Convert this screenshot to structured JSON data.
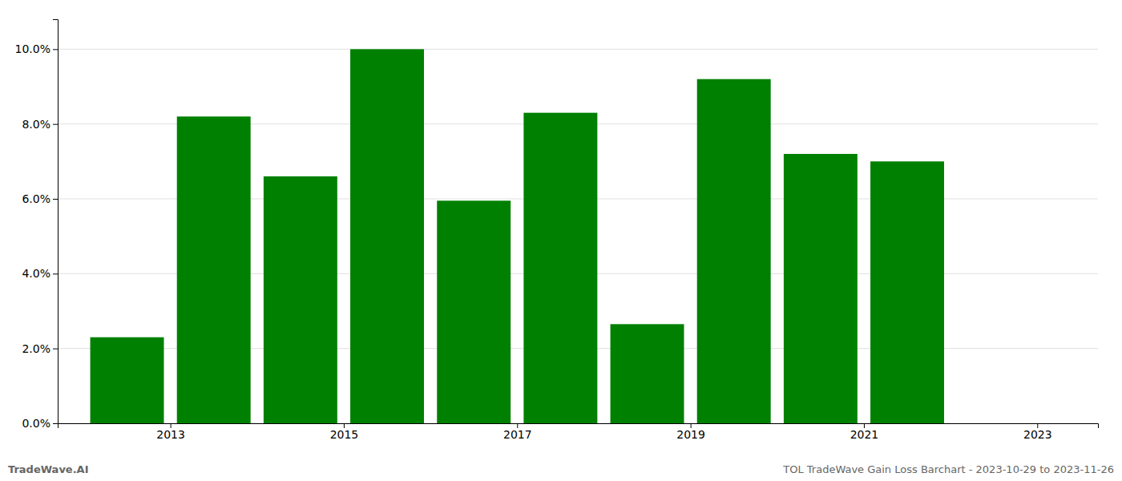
{
  "chart_data": {
    "type": "bar",
    "x": [
      2013,
      2014,
      2015,
      2016,
      2017,
      2018,
      2019,
      2020,
      2021,
      2022
    ],
    "values": [
      0.023,
      0.082,
      0.066,
      0.1,
      0.0595,
      0.083,
      0.0265,
      0.092,
      0.072,
      0.07
    ],
    "color": "#008000",
    "xlim": [
      2012.2,
      2024.2
    ],
    "xticks": [
      {
        "value": 2013.5,
        "label": "2013"
      },
      {
        "value": 2015.5,
        "label": "2015"
      },
      {
        "value": 2017.5,
        "label": "2017"
      },
      {
        "value": 2019.5,
        "label": "2019"
      },
      {
        "value": 2021.5,
        "label": "2021"
      },
      {
        "value": 2023.5,
        "label": "2023"
      }
    ],
    "ylim": [
      0,
      0.108
    ],
    "yticks": [
      {
        "value": 0.0,
        "label": "0.0%"
      },
      {
        "value": 0.02,
        "label": "2.0%"
      },
      {
        "value": 0.04,
        "label": "4.0%"
      },
      {
        "value": 0.06,
        "label": "6.0%"
      },
      {
        "value": 0.08,
        "label": "8.0%"
      },
      {
        "value": 0.1,
        "label": "10.0%"
      }
    ],
    "grid": true,
    "annotations": [
      "TradeWave.AI",
      "TOL TradeWave Gain Loss Barchart - 2023-10-29 to 2023-11-26"
    ]
  }
}
